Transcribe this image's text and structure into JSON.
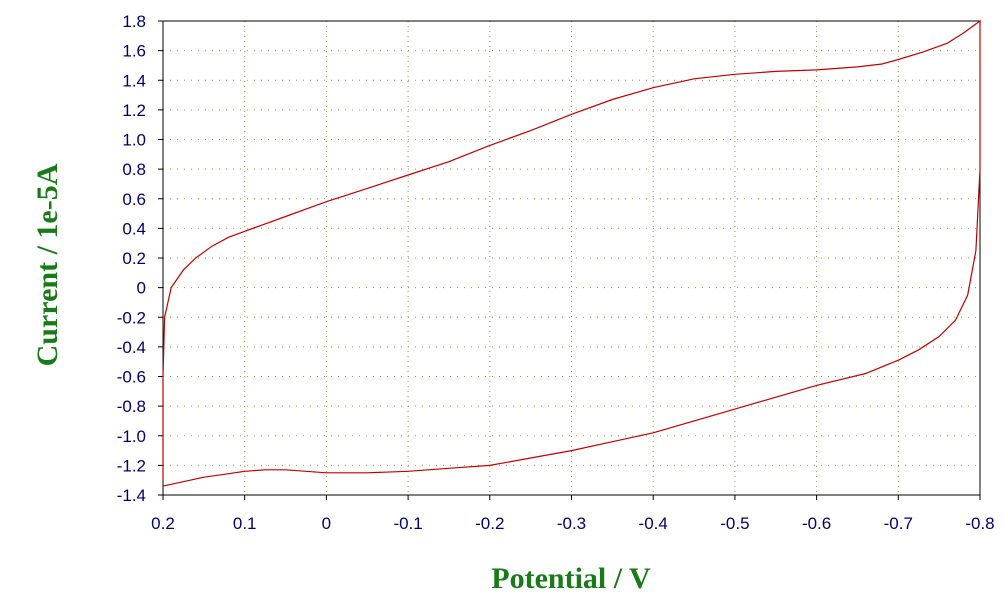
{
  "chart_data": {
    "type": "line",
    "title": "",
    "xlabel": "Potential / V",
    "ylabel": "Current / 1e-5A",
    "xlim": [
      0.2,
      -0.8
    ],
    "ylim": [
      -1.4,
      1.8
    ],
    "x_axis_reversed": true,
    "x_ticks": [
      "0.2",
      "0.1",
      "0",
      "-0.1",
      "-0.2",
      "-0.3",
      "-0.4",
      "-0.5",
      "-0.6",
      "-0.7",
      "-0.8"
    ],
    "y_ticks": [
      "1.8",
      "1.6",
      "1.4",
      "1.2",
      "1.0",
      "0.8",
      "0.6",
      "0.4",
      "0.2",
      "0",
      "-0.2",
      "-0.4",
      "-0.6",
      "-0.8",
      "-1.0",
      "-1.2",
      "-1.4"
    ],
    "grid": "dotted",
    "series": [
      {
        "line_color": "#c00000",
        "x": [
          0.2,
          0.2,
          0.198,
          0.19,
          0.175,
          0.16,
          0.14,
          0.12,
          0.1,
          0.075,
          0.05,
          0.025,
          0.0,
          -0.05,
          -0.1,
          -0.15,
          -0.2,
          -0.25,
          -0.3,
          -0.35,
          -0.4,
          -0.45,
          -0.5,
          -0.55,
          -0.6,
          -0.65,
          -0.68,
          -0.7,
          -0.73,
          -0.76,
          -0.78,
          -0.79,
          -0.8,
          -0.8,
          -0.8,
          -0.795,
          -0.785,
          -0.77,
          -0.75,
          -0.725,
          -0.7,
          -0.66,
          -0.6,
          -0.55,
          -0.5,
          -0.45,
          -0.4,
          -0.35,
          -0.3,
          -0.25,
          -0.2,
          -0.15,
          -0.1,
          -0.05,
          0.0,
          0.025,
          0.05,
          0.075,
          0.1,
          0.125,
          0.15,
          0.175,
          0.2
        ],
        "y": [
          -1.3,
          -0.6,
          -0.2,
          0.0,
          0.12,
          0.2,
          0.28,
          0.34,
          0.38,
          0.43,
          0.48,
          0.53,
          0.58,
          0.67,
          0.76,
          0.85,
          0.96,
          1.06,
          1.17,
          1.27,
          1.35,
          1.41,
          1.44,
          1.46,
          1.47,
          1.49,
          1.51,
          1.54,
          1.59,
          1.65,
          1.72,
          1.76,
          1.8,
          1.6,
          0.8,
          0.25,
          -0.05,
          -0.22,
          -0.33,
          -0.42,
          -0.49,
          -0.58,
          -0.66,
          -0.74,
          -0.82,
          -0.9,
          -0.98,
          -1.04,
          -1.1,
          -1.15,
          -1.2,
          -1.22,
          -1.24,
          -1.25,
          -1.25,
          -1.24,
          -1.23,
          -1.23,
          -1.24,
          -1.26,
          -1.28,
          -1.31,
          -1.34
        ]
      }
    ]
  }
}
